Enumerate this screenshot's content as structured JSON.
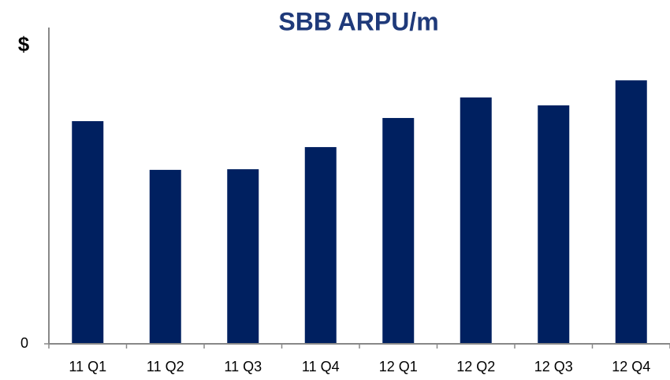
{
  "chart_data": {
    "type": "bar",
    "title": "SBB ARPU/m",
    "y_label": "$",
    "categories": [
      "11 Q1",
      "11 Q2",
      "11 Q3",
      "11 Q4",
      "12 Q1",
      "12 Q2",
      "12 Q3",
      "12 Q4"
    ],
    "values": [
      70.4,
      55,
      55.2,
      62.2,
      71.4,
      77.9,
      75.4,
      83.3
    ],
    "color": "#002060",
    "ylim": [
      0,
      100
    ],
    "yticks": [
      0
    ],
    "grid": false
  }
}
